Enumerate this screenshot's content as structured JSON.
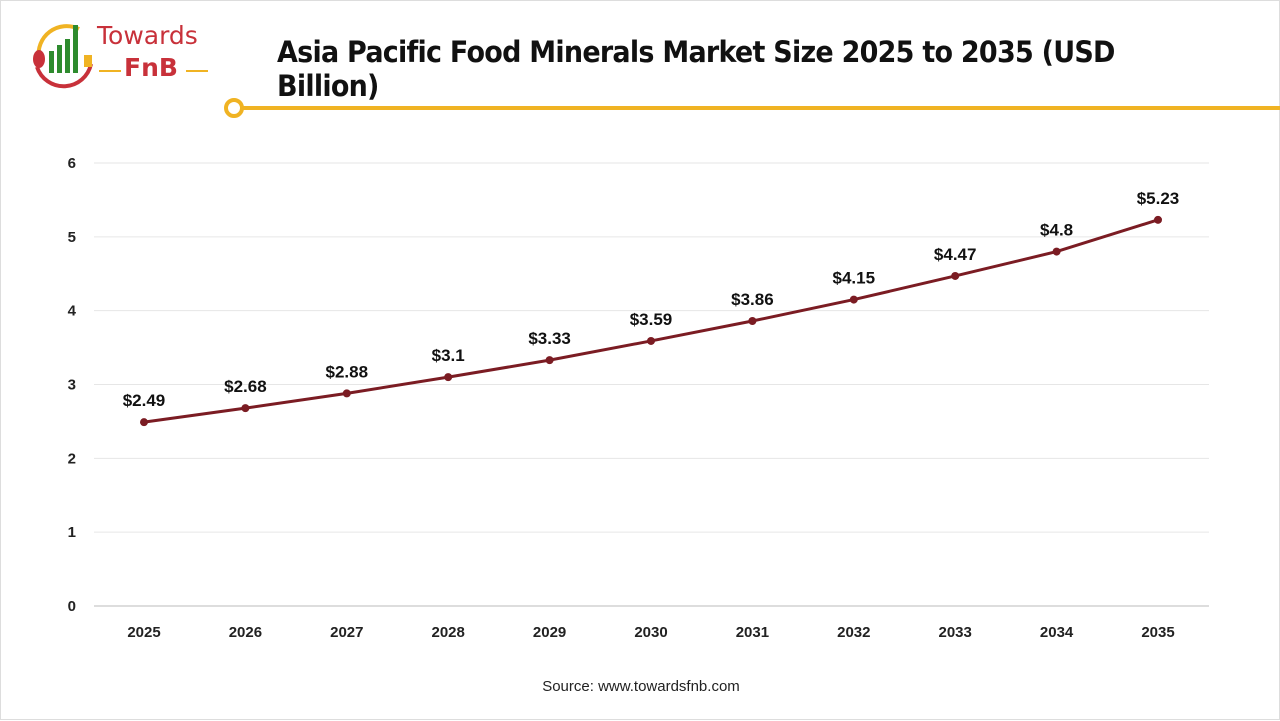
{
  "header": {
    "title": "Asia Pacific Food Minerals Market Size 2025 to 2035 (USD Billion)",
    "logo": {
      "line1": "Towards",
      "line2": "FnB"
    }
  },
  "colors": {
    "line": "#7b1c23",
    "accent": "#f0b323",
    "grid": "#e6e6e6"
  },
  "source": "Source: www.towardsfnb.com",
  "chart_data": {
    "type": "line",
    "title": "Asia Pacific Food Minerals Market Size 2025 to 2035 (USD Billion)",
    "xlabel": "",
    "ylabel": "",
    "categories": [
      "2025",
      "2026",
      "2027",
      "2028",
      "2029",
      "2030",
      "2031",
      "2032",
      "2033",
      "2034",
      "2035"
    ],
    "values": [
      2.49,
      2.68,
      2.88,
      3.1,
      3.33,
      3.59,
      3.86,
      4.15,
      4.47,
      4.8,
      5.23
    ],
    "data_labels": [
      "$2.49",
      "$2.68",
      "$2.88",
      "$3.1",
      "$3.33",
      "$3.59",
      "$3.86",
      "$4.15",
      "$4.47",
      "$4.8",
      "$5.23"
    ],
    "ylim": [
      0,
      6
    ],
    "yticks": [
      "0",
      "1",
      "2",
      "3",
      "4",
      "5",
      "6"
    ],
    "grid": true,
    "legend": "none"
  }
}
